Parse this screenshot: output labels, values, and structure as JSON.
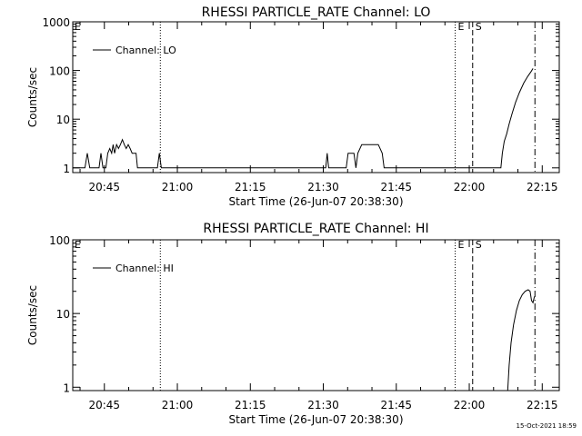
{
  "chart_data": [
    {
      "type": "line",
      "title": "RHESSI PARTICLE_RATE Channel: LO",
      "xlabel": "Start Time (26-Jun-07 20:38:30)",
      "ylabel": "Counts/sec",
      "x_tick_labels": [
        "20:45",
        "21:00",
        "21:15",
        "21:30",
        "21:45",
        "22:00",
        "22:15"
      ],
      "x_range_minutes": [
        0,
        100
      ],
      "y_scale": "log",
      "y_tick_labels": [
        "1",
        "10",
        "100",
        "1000"
      ],
      "y_ticks": [
        1,
        10,
        100,
        1000
      ],
      "ylim": [
        0.8,
        1000
      ],
      "legend": "top-left",
      "series": [
        {
          "name": "Channel: LO",
          "points": [
            [
              0,
              1
            ],
            [
              2.5,
              1
            ],
            [
              3.0,
              2
            ],
            [
              3.5,
              1
            ],
            [
              5.4,
              1
            ],
            [
              5.8,
              2
            ],
            [
              6.2,
              1
            ],
            [
              6.8,
              1
            ],
            [
              7.2,
              2
            ],
            [
              7.6,
              2.5
            ],
            [
              8.0,
              2
            ],
            [
              8.3,
              3
            ],
            [
              8.6,
              2
            ],
            [
              9.0,
              3
            ],
            [
              9.4,
              2.5
            ],
            [
              9.8,
              3
            ],
            [
              10.2,
              3.8
            ],
            [
              10.6,
              3
            ],
            [
              11.0,
              2.5
            ],
            [
              11.4,
              3
            ],
            [
              11.8,
              2.5
            ],
            [
              12.2,
              2
            ],
            [
              13.0,
              2
            ],
            [
              13.3,
              1
            ],
            [
              17.4,
              1
            ],
            [
              17.8,
              2
            ],
            [
              18.2,
              1
            ],
            [
              52.0,
              1
            ],
            [
              52.3,
              2
            ],
            [
              52.6,
              1
            ],
            [
              56.2,
              1
            ],
            [
              56.6,
              2
            ],
            [
              57.8,
              2
            ],
            [
              58.2,
              1
            ],
            [
              58.6,
              2
            ],
            [
              59.4,
              3
            ],
            [
              62.8,
              3
            ],
            [
              63.6,
              2
            ],
            [
              64.0,
              1
            ],
            [
              88.0,
              1
            ],
            [
              88.3,
              2
            ],
            [
              88.7,
              3.5
            ],
            [
              89.2,
              5
            ],
            [
              89.7,
              8
            ],
            [
              90.3,
              13
            ],
            [
              91.0,
              22
            ],
            [
              91.8,
              35
            ],
            [
              92.7,
              55
            ],
            [
              93.5,
              75
            ],
            [
              94.2,
              95
            ],
            [
              94.6,
              110
            ]
          ]
        }
      ],
      "markers": [
        {
          "minute": 18.0,
          "style": "dotted",
          "label": ""
        },
        {
          "minute": 78.6,
          "style": "dotted",
          "label": "E"
        },
        {
          "minute": 82.2,
          "style": "dashed",
          "label": "S"
        },
        {
          "minute": 95.0,
          "style": "dashdot",
          "label": ""
        }
      ],
      "left_marker_label": "E"
    },
    {
      "type": "line",
      "title": "RHESSI PARTICLE_RATE Channel: HI",
      "xlabel": "Start Time (26-Jun-07 20:38:30)",
      "ylabel": "Counts/sec",
      "x_tick_labels": [
        "20:45",
        "21:00",
        "21:15",
        "21:30",
        "21:45",
        "22:00",
        "22:15"
      ],
      "x_range_minutes": [
        0,
        100
      ],
      "y_scale": "log",
      "y_tick_labels": [
        "1",
        "10",
        "100"
      ],
      "y_ticks": [
        1,
        10,
        100
      ],
      "ylim": [
        0.9,
        100
      ],
      "legend": "top-left",
      "series": [
        {
          "name": "Channel: HI",
          "points": [
            [
              89.4,
              0.9
            ],
            [
              89.7,
              2
            ],
            [
              90.1,
              4
            ],
            [
              90.6,
              7
            ],
            [
              91.2,
              11
            ],
            [
              91.8,
              15
            ],
            [
              92.4,
              18
            ],
            [
              93.0,
              20
            ],
            [
              93.6,
              21
            ],
            [
              94.0,
              20
            ],
            [
              94.3,
              15
            ],
            [
              94.6,
              14
            ],
            [
              94.9,
              17
            ]
          ]
        }
      ],
      "markers": [
        {
          "minute": 18.0,
          "style": "dotted",
          "label": ""
        },
        {
          "minute": 78.6,
          "style": "dotted",
          "label": "E"
        },
        {
          "minute": 82.2,
          "style": "dashed",
          "label": "S"
        },
        {
          "minute": 95.0,
          "style": "dashdot",
          "label": ""
        }
      ],
      "left_marker_label": "E"
    }
  ],
  "footer": {
    "timestamp": "15-Oct-2021 18:59"
  }
}
